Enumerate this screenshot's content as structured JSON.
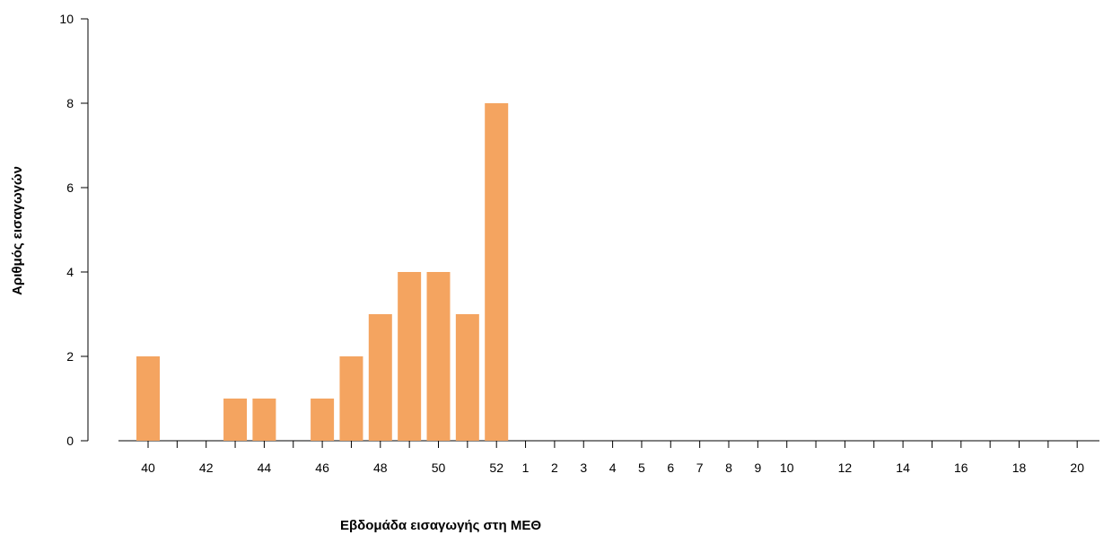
{
  "chart_data": {
    "type": "bar",
    "title": "",
    "xlabel": "Εβδομάδα εισαγωγής στη ΜΕΘ",
    "ylabel": "Αριθμός εισαγωγών",
    "ylim": [
      0,
      10
    ],
    "yticks": [
      0,
      2,
      4,
      6,
      8,
      10
    ],
    "grid": false,
    "legend": "none",
    "bar_color": "#F4A460",
    "categories": [
      "40",
      "41",
      "42",
      "43",
      "44",
      "45",
      "46",
      "47",
      "48",
      "49",
      "50",
      "51",
      "52",
      "1",
      "2",
      "3",
      "4",
      "5",
      "6",
      "7",
      "8",
      "9",
      "10",
      "11",
      "12",
      "13",
      "14",
      "15",
      "16",
      "17",
      "18",
      "19",
      "20"
    ],
    "values": [
      2,
      0,
      0,
      1,
      1,
      0,
      1,
      2,
      3,
      4,
      4,
      3,
      8,
      0,
      0,
      0,
      0,
      0,
      0,
      0,
      0,
      0,
      0,
      0,
      0,
      0,
      0,
      0,
      0,
      0,
      0,
      0,
      0
    ],
    "tick_labels": [
      "40",
      "",
      "42",
      "",
      "44",
      "",
      "46",
      "",
      "48",
      "",
      "50",
      "",
      "52",
      "1",
      "2",
      "3",
      "4",
      "5",
      "6",
      "7",
      "8",
      "9",
      "10",
      "",
      "12",
      "",
      "14",
      "",
      "16",
      "",
      "18",
      "",
      "20"
    ]
  }
}
